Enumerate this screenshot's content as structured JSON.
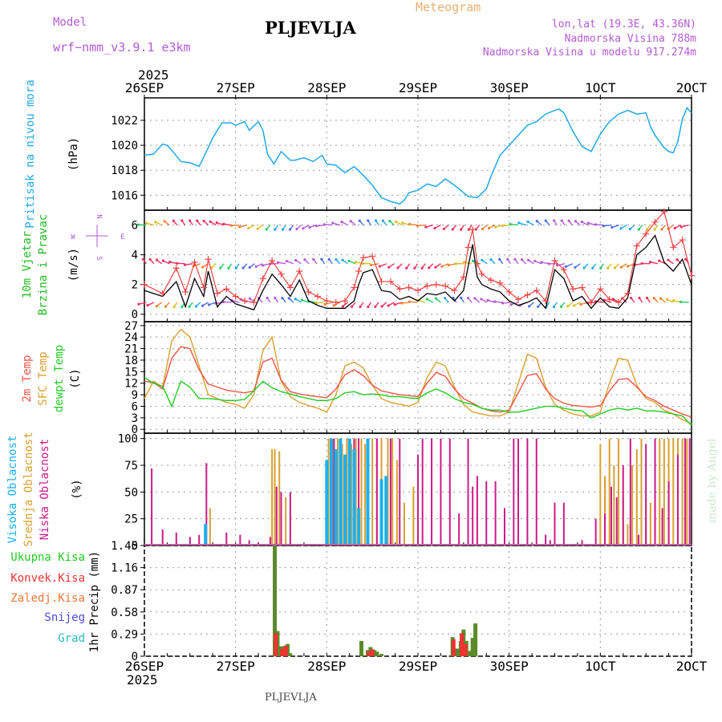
{
  "header": {
    "model_label": "Model",
    "model_run": "wrf−nmm_v3.9.1  e3km",
    "station_title": "PLJEVLJA",
    "meteogram_label": "Meteogram",
    "lonlat": "lon,lat (19.3E, 43.36N)",
    "elevation": "Nadmorska Visina 788m",
    "model_elevation": "Nadmorska Visina u modelu 917.274m",
    "year_top": "2025",
    "year_bottom": "2025",
    "footer_station": "PLJEVLJA",
    "watermark": "made by Angel"
  },
  "colors": {
    "pressure": "#22a8e8",
    "wind_label": "#22bb22",
    "temp2m": "#ee5544",
    "sfc": "#d9a030",
    "dewpt": "#22cc22",
    "cloud_high": "#1ab0f0",
    "cloud_mid": "#d8a030",
    "cloud_low": "#cc1a88",
    "precip_total": "#5a8a2a",
    "precip_conv": "#ee3333",
    "precip_frz": "#ee7733",
    "snow": "#4a4adc",
    "grad": "#2ab8b8",
    "dir_purple": "#b45ad6"
  },
  "chart_data": [
    {
      "type": "line",
      "panel": "pressure",
      "ylabel_1": "Pritisak na nivou mora",
      "ylabel_2": "(hPa)",
      "x_unit": "days from 26 SEP 00z",
      "ylim": [
        1014.8,
        1023.8
      ],
      "yticks": [
        1016,
        1018,
        1020,
        1022
      ],
      "x": [
        0,
        0.1,
        0.2,
        0.25,
        0.3,
        0.4,
        0.5,
        0.6,
        0.7,
        0.75,
        0.85,
        0.95,
        1.0,
        1.1,
        1.15,
        1.25,
        1.3,
        1.35,
        1.42,
        1.5,
        1.6,
        1.65,
        1.75,
        1.85,
        1.95,
        2.0,
        2.1,
        2.2,
        2.3,
        2.4,
        2.5,
        2.6,
        2.7,
        2.8,
        2.85,
        2.9,
        3.0,
        3.1,
        3.15,
        3.2,
        3.3,
        3.4,
        3.5,
        3.55,
        3.65,
        3.75,
        3.8,
        3.9,
        4.0,
        4.1,
        4.2,
        4.3,
        4.4,
        4.5,
        4.55,
        4.6,
        4.7,
        4.8,
        4.9,
        5.0,
        5.1,
        5.2,
        5.3,
        5.4,
        5.5,
        5.55,
        5.6,
        5.7,
        5.75,
        5.8,
        5.85,
        5.9
      ],
      "values": [
        1019.2,
        1019.3,
        1020.1,
        1020.0,
        1019.6,
        1018.7,
        1018.6,
        1018.3,
        1019.8,
        1020.6,
        1021.8,
        1021.8,
        1021.6,
        1021.9,
        1021.2,
        1021.9,
        1021.2,
        1019.3,
        1018.5,
        1019.5,
        1018.8,
        1018.8,
        1019.0,
        1018.7,
        1019.2,
        1018.5,
        1018.4,
        1017.8,
        1018.3,
        1017.6,
        1016.8,
        1015.8,
        1015.5,
        1015.3,
        1015.6,
        1016.2,
        1016.4,
        1016.9,
        1016.8,
        1016.7,
        1017.3,
        1016.8,
        1016.2,
        1015.9,
        1015.8,
        1016.5,
        1017.5,
        1019.2,
        1020.0,
        1020.8,
        1021.6,
        1021.9,
        1022.5,
        1022.8,
        1022.9,
        1022.6,
        1021.1,
        1019.9,
        1019.5,
        1020.9,
        1021.9,
        1022.5,
        1022.8,
        1022.5,
        1022.6,
        1021.5,
        1020.8,
        1019.8,
        1019.5,
        1019.4,
        1020.3,
        1022.1
      ],
      "extra_values": {
        "x": [
          5.95,
          6.0
        ],
        "values": [
          1023.0,
          1022.6
        ]
      }
    },
    {
      "type": "line",
      "panel": "wind",
      "ylabel_1": "10m Vjetar",
      "ylabel_2": "Brzina i Pravac",
      "ylabel_3": "(m/s)",
      "compass": {
        "north": "N",
        "south": "S",
        "east": "E",
        "west": "W"
      },
      "ylim": [
        -0.5,
        7.0
      ],
      "yticks": [
        0,
        2,
        4,
        6
      ],
      "speed_x": [
        0,
        0.2,
        0.35,
        0.45,
        0.55,
        0.65,
        0.7,
        0.8,
        0.9,
        1.0,
        1.1,
        1.2,
        1.3,
        1.4,
        1.5,
        1.6,
        1.7,
        1.8,
        1.9,
        2.0,
        2.1,
        2.2,
        2.3,
        2.35,
        2.4,
        2.5,
        2.6,
        2.7,
        2.8,
        2.9,
        3.0,
        3.1,
        3.2,
        3.3,
        3.4,
        3.5,
        3.55,
        3.6,
        3.65,
        3.7,
        3.8,
        3.9,
        4.0,
        4.1,
        4.2,
        4.3,
        4.4,
        4.5,
        4.6,
        4.7,
        4.8,
        4.9,
        5.0,
        5.1,
        5.2,
        5.3,
        5.4,
        5.5,
        5.6,
        5.7,
        5.8,
        5.9,
        6.0
      ],
      "speed_values": [
        1.6,
        1.2,
        2.2,
        0.5,
        2.4,
        1.2,
        2.9,
        0.5,
        1.2,
        0.7,
        0.5,
        0.3,
        1.6,
        2.7,
        2.0,
        1.2,
        2.3,
        0.9,
        0.6,
        0.4,
        0.4,
        0.4,
        0.9,
        2.0,
        2.8,
        3.0,
        1.6,
        1.5,
        1.0,
        1.2,
        0.9,
        1.4,
        1.3,
        1.5,
        0.9,
        1.6,
        3.2,
        4.7,
        2.5,
        2.0,
        1.7,
        1.5,
        0.9,
        0.6,
        0.8,
        1.1,
        0.4,
        3.0,
        2.4,
        0.9,
        1.2,
        0.4,
        1.1,
        0.5,
        0.4,
        1.1,
        4.0,
        4.5,
        5.3,
        3.5,
        2.9,
        3.7,
        2.0
      ],
      "gust_values": [
        2.0,
        1.4,
        3.1,
        1.5,
        3.5,
        1.8,
        3.7,
        1.4,
        1.7,
        1.2,
        0.9,
        0.8,
        2.4,
        3.6,
        2.7,
        1.8,
        2.9,
        1.5,
        1.2,
        0.9,
        0.8,
        0.9,
        1.8,
        2.9,
        3.8,
        3.9,
        2.2,
        2.2,
        1.7,
        1.8,
        1.6,
        1.9,
        2.0,
        1.9,
        1.6,
        2.5,
        4.5,
        5.7,
        3.4,
        2.7,
        2.3,
        2.1,
        1.5,
        1.0,
        1.3,
        1.6,
        0.9,
        3.6,
        3.0,
        1.7,
        1.8,
        0.8,
        1.7,
        1.0,
        0.8,
        1.4,
        4.6,
        5.4,
        6.2,
        6.9,
        4.5,
        5.0,
        2.6
      ]
    },
    {
      "type": "line",
      "panel": "temperature",
      "ylabel_1": "2m Temp",
      "ylabel_2": "SFC Temp",
      "ylabel_3": "dewpt Temp",
      "ylabel_4": "(C)",
      "ylim": [
        -1,
        28
      ],
      "yticks": [
        0,
        3,
        6,
        9,
        12,
        15,
        18,
        21,
        24,
        27
      ],
      "x": [
        0,
        0.1,
        0.2,
        0.3,
        0.4,
        0.5,
        0.6,
        0.7,
        0.8,
        0.9,
        1.0,
        1.1,
        1.2,
        1.3,
        1.4,
        1.5,
        1.6,
        1.7,
        1.8,
        1.9,
        2.0,
        2.1,
        2.2,
        2.3,
        2.4,
        2.5,
        2.6,
        2.7,
        2.8,
        2.9,
        3.0,
        3.1,
        3.2,
        3.3,
        3.4,
        3.5,
        3.6,
        3.7,
        3.8,
        3.9,
        4.0,
        4.1,
        4.2,
        4.3,
        4.4,
        4.5,
        4.6,
        4.7,
        4.8,
        4.9,
        5.0,
        5.1,
        5.2,
        5.3,
        5.4,
        5.5,
        5.6,
        5.7,
        5.8,
        5.9,
        6.0
      ],
      "series": [
        {
          "name": "2m Temp",
          "values": [
            12.5,
            12.2,
            10.5,
            18.5,
            21.5,
            21.0,
            15.5,
            11.8,
            11.0,
            10.2,
            9.8,
            9.5,
            10.0,
            17.5,
            18.5,
            12.8,
            9.8,
            9.2,
            8.8,
            8.5,
            8.2,
            10.5,
            14.2,
            15.5,
            14.0,
            11.5,
            10.0,
            9.5,
            9.0,
            8.8,
            8.5,
            12.0,
            14.8,
            13.8,
            10.5,
            8.0,
            6.8,
            5.5,
            4.8,
            4.5,
            5.0,
            9.5,
            14.0,
            14.5,
            10.5,
            8.0,
            6.8,
            6.2,
            6.0,
            5.8,
            6.2,
            10.0,
            13.0,
            13.2,
            11.0,
            8.5,
            7.5,
            6.0,
            5.0,
            4.0,
            3.2
          ]
        },
        {
          "name": "SFC Temp",
          "values": [
            8.0,
            12.5,
            11.0,
            23.0,
            26.0,
            24.0,
            16.5,
            9.0,
            8.0,
            7.0,
            6.5,
            5.5,
            9.0,
            20.5,
            24.0,
            12.5,
            8.5,
            7.0,
            6.2,
            5.5,
            4.5,
            9.0,
            16.5,
            17.5,
            16.0,
            11.5,
            8.0,
            7.0,
            6.5,
            6.0,
            7.0,
            13.5,
            17.5,
            16.5,
            11.0,
            6.5,
            4.5,
            4.0,
            3.5,
            3.5,
            4.5,
            12.0,
            19.5,
            18.5,
            11.0,
            6.5,
            5.0,
            4.0,
            3.5,
            3.5,
            4.5,
            12.0,
            18.5,
            18.0,
            11.5,
            8.0,
            7.0,
            5.0,
            4.0,
            2.5,
            1.5
          ]
        },
        {
          "name": "dewpt Temp",
          "values": [
            13.5,
            12.0,
            11.2,
            6.0,
            12.5,
            11.0,
            8.0,
            8.0,
            7.8,
            7.5,
            7.5,
            7.8,
            10.0,
            12.5,
            10.8,
            9.8,
            9.2,
            8.5,
            8.0,
            7.5,
            7.5,
            8.0,
            9.5,
            9.8,
            9.0,
            9.2,
            9.0,
            8.5,
            8.5,
            8.2,
            8.0,
            9.5,
            10.5,
            9.5,
            8.0,
            7.0,
            6.5,
            5.5,
            5.0,
            5.0,
            4.5,
            4.5,
            5.0,
            5.5,
            6.0,
            6.0,
            5.5,
            5.0,
            4.8,
            3.0,
            4.0,
            5.0,
            5.5,
            5.0,
            5.5,
            4.8,
            4.8,
            4.5,
            4.0,
            3.5,
            1.0
          ]
        }
      ]
    },
    {
      "type": "bar",
      "panel": "clouds",
      "ylabel_1": "Visoka Oblacnost",
      "ylabel_2": "Srednja Oblacnost",
      "ylabel_3": "Niska Oblacnost",
      "ylabel_4": "(%)",
      "ylim": [
        0,
        105
      ],
      "yticks": [
        0,
        25,
        50,
        75,
        100
      ],
      "series": [
        {
          "name": "Visoka Oblacnost",
          "x": [
            0.67,
            2.0,
            2.05,
            2.1,
            2.15,
            2.2,
            2.25,
            2.3,
            2.35,
            2.45,
            2.6,
            2.65
          ],
          "values": [
            20,
            80,
            100,
            90,
            100,
            85,
            100,
            90,
            35,
            100,
            62,
            65
          ]
        },
        {
          "name": "Srednja Oblacnost",
          "x": [
            0.72,
            1.4,
            1.43,
            1.48,
            1.55,
            2.02,
            2.07,
            2.12,
            2.17,
            2.22,
            2.27,
            2.32,
            2.38,
            2.42,
            2.5,
            2.55,
            2.6,
            2.67,
            2.72,
            2.77,
            2.85,
            2.95,
            5.0,
            5.05,
            5.1,
            5.15,
            5.2,
            5.25,
            5.3,
            5.35,
            5.4,
            5.45,
            5.5,
            5.55,
            5.6,
            5.65,
            5.7,
            5.75,
            5.8,
            5.85,
            5.9,
            5.95
          ],
          "values": [
            35,
            90,
            90,
            88,
            45,
            100,
            100,
            100,
            95,
            100,
            95,
            100,
            100,
            95,
            100,
            100,
            100,
            100,
            100,
            80,
            40,
            55,
            95,
            65,
            100,
            75,
            100,
            45,
            20,
            75,
            90,
            100,
            45,
            40,
            100,
            100,
            100,
            100,
            100,
            100,
            100,
            100
          ]
        },
        {
          "name": "Niska Oblacnost",
          "x": [
            0.08,
            0.2,
            0.35,
            0.5,
            0.6,
            0.68,
            0.9,
            1.05,
            1.15,
            1.25,
            1.38,
            1.45,
            1.5,
            1.6,
            2.08,
            2.15,
            2.3,
            2.35,
            2.45,
            2.55,
            2.6,
            2.7,
            2.8,
            3.0,
            3.05,
            3.15,
            3.25,
            3.35,
            3.45,
            3.55,
            3.6,
            3.65,
            3.75,
            3.85,
            3.95,
            4.05,
            4.1,
            4.2,
            4.3,
            4.4,
            4.45,
            4.5,
            4.6,
            4.8,
            4.95,
            5.05,
            5.12,
            5.18,
            5.25,
            5.33,
            5.42,
            5.5,
            5.6,
            5.68,
            5.75,
            5.85,
            5.93,
            5.98
          ],
          "values": [
            72,
            15,
            12,
            8,
            10,
            77,
            12,
            10,
            5,
            3,
            8,
            55,
            50,
            50,
            100,
            100,
            100,
            100,
            50,
            100,
            50,
            100,
            100,
            85,
            100,
            100,
            100,
            100,
            30,
            100,
            55,
            65,
            60,
            60,
            35,
            100,
            100,
            100,
            100,
            10,
            5,
            40,
            40,
            5,
            25,
            30,
            55,
            45,
            75,
            100,
            10,
            95,
            100,
            35,
            60,
            85,
            100,
            100
          ]
        }
      ]
    },
    {
      "type": "bar",
      "panel": "precipitation",
      "ylabel_1": "1hr Precip (mm)",
      "legend": [
        "Ukupna Kisa",
        "Konvek.Kisa",
        "Zaledj.Kisa",
        "Snijeg",
        "Grad"
      ],
      "ylim": [
        0,
        1.45
      ],
      "yticks": [
        0,
        0.29,
        0.58,
        0.87,
        1.16,
        1.45
      ],
      "ytick_labels": [
        "0",
        "0.29",
        "0.58",
        "0.87",
        "1.16",
        "1.45"
      ],
      "series": [
        {
          "name": "Ukupna Kisa",
          "x": [
            1.43,
            1.46,
            1.5,
            1.53,
            1.57,
            1.6,
            2.38,
            2.45,
            2.48,
            2.52,
            2.55,
            2.6,
            3.38,
            3.41,
            3.44,
            3.47,
            3.5,
            3.53,
            3.56,
            3.6,
            3.63
          ],
          "values": [
            1.45,
            0.33,
            0.13,
            0.13,
            0.16,
            0.04,
            0.2,
            0.08,
            0.12,
            0.08,
            0.06,
            0.03,
            0.25,
            0.1,
            0.1,
            0.2,
            0.35,
            0.2,
            0.07,
            0.24,
            0.43
          ]
        },
        {
          "name": "Konvek.Kisa",
          "x": [
            1.44,
            1.51,
            1.55,
            2.46,
            2.5,
            3.39,
            3.48,
            3.52
          ],
          "values": [
            0.3,
            0.1,
            0.14,
            0.06,
            0.09,
            0.22,
            0.3,
            0.16
          ]
        }
      ]
    }
  ],
  "x_axis": {
    "top_labels": [
      "26SEP",
      "27SEP",
      "28SEP",
      "29SEP",
      "30SEP",
      "1OCT",
      "2OCT"
    ],
    "bottom_labels": [
      "26SEP",
      "27SEP",
      "28SEP",
      "29SEP",
      "30SEP",
      "1OCT",
      "2OCT"
    ]
  }
}
